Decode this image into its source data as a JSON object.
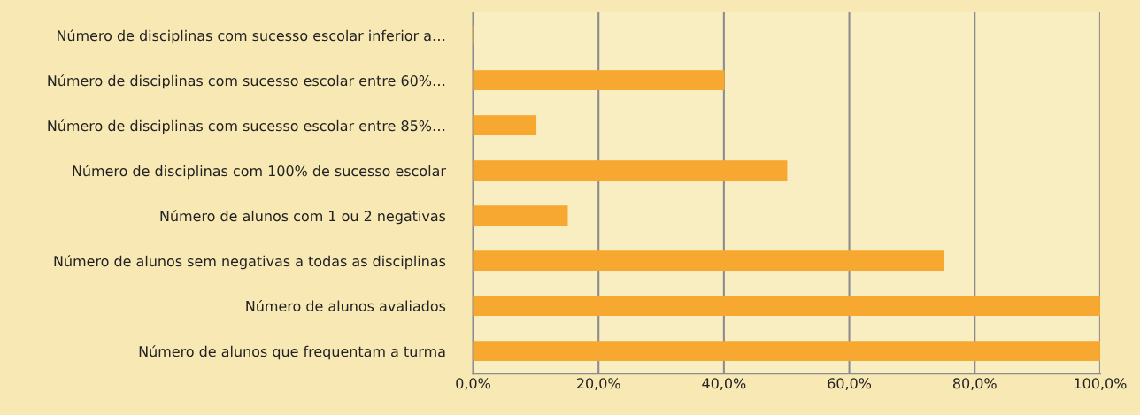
{
  "chart_data": {
    "type": "bar",
    "orientation": "horizontal",
    "categories": [
      "Número de disciplinas com sucesso escolar inferior a…",
      "Número de disciplinas com sucesso escolar entre 60%…",
      "Número de disciplinas com sucesso escolar entre 85%…",
      "Número de disciplinas com 100% de sucesso escolar",
      "Número de alunos com 1 ou 2 negativas",
      "Número de alunos sem negativas a todas as disciplinas",
      "Número de alunos avaliados",
      "Número de alunos que frequentam a turma"
    ],
    "values": [
      0,
      40,
      10,
      50,
      15,
      75,
      100,
      100
    ],
    "color": "#f6a830",
    "xlim": [
      0,
      100
    ],
    "xticks": [
      {
        "value": 0,
        "label": "0,0%"
      },
      {
        "value": 20,
        "label": "20,0%"
      },
      {
        "value": 40,
        "label": "40,0%"
      },
      {
        "value": 60,
        "label": "60,0%"
      },
      {
        "value": 80,
        "label": "80,0%"
      },
      {
        "value": 100,
        "label": "100,0%"
      }
    ],
    "grid": "x",
    "legend": false
  }
}
